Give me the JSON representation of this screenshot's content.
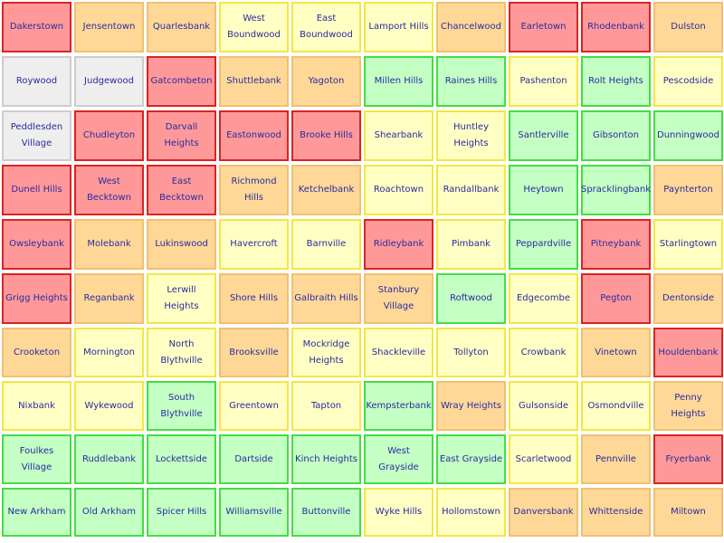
{
  "palette": {
    "red": {
      "bg": "#ff9999",
      "border": "#dd2222"
    },
    "orange": {
      "bg": "#ffd898",
      "border": "#f0c070"
    },
    "yellow": {
      "bg": "#ffffc4",
      "border": "#f2e840"
    },
    "green": {
      "bg": "#c4ffc4",
      "border": "#44dd44"
    },
    "grey": {
      "bg": "#eeeeee",
      "border": "#cccccc"
    }
  },
  "rows": [
    [
      {
        "name": "Dakerstown",
        "status": "red"
      },
      {
        "name": "Jensentown",
        "status": "orange"
      },
      {
        "name": "Quarlesbank",
        "status": "orange"
      },
      {
        "name": "West Boundwood",
        "status": "yellow"
      },
      {
        "name": "East Boundwood",
        "status": "yellow"
      },
      {
        "name": "Lamport Hills",
        "status": "yellow"
      },
      {
        "name": "Chancelwood",
        "status": "orange"
      },
      {
        "name": "Earletown",
        "status": "red"
      },
      {
        "name": "Rhodenbank",
        "status": "red"
      },
      {
        "name": "Dulston",
        "status": "orange"
      }
    ],
    [
      {
        "name": "Roywood",
        "status": "grey"
      },
      {
        "name": "Judgewood",
        "status": "grey"
      },
      {
        "name": "Gatcombeton",
        "status": "red"
      },
      {
        "name": "Shuttlebank",
        "status": "orange"
      },
      {
        "name": "Yagoton",
        "status": "orange"
      },
      {
        "name": "Millen Hills",
        "status": "green"
      },
      {
        "name": "Raines Hills",
        "status": "green"
      },
      {
        "name": "Pashenton",
        "status": "yellow"
      },
      {
        "name": "Rolt Heights",
        "status": "green"
      },
      {
        "name": "Pescodside",
        "status": "yellow"
      }
    ],
    [
      {
        "name": "Peddlesden Village",
        "status": "grey"
      },
      {
        "name": "Chudleyton",
        "status": "red"
      },
      {
        "name": "Darvall Heights",
        "status": "red"
      },
      {
        "name": "Eastonwood",
        "status": "red"
      },
      {
        "name": "Brooke Hills",
        "status": "red"
      },
      {
        "name": "Shearbank",
        "status": "yellow"
      },
      {
        "name": "Huntley Heights",
        "status": "yellow"
      },
      {
        "name": "Santlerville",
        "status": "green"
      },
      {
        "name": "Gibsonton",
        "status": "green"
      },
      {
        "name": "Dunningwood",
        "status": "green"
      }
    ],
    [
      {
        "name": "Dunell Hills",
        "status": "red"
      },
      {
        "name": "West Becktown",
        "status": "red"
      },
      {
        "name": "East Becktown",
        "status": "red"
      },
      {
        "name": "Richmond Hills",
        "status": "orange"
      },
      {
        "name": "Ketchelbank",
        "status": "orange"
      },
      {
        "name": "Roachtown",
        "status": "yellow"
      },
      {
        "name": "Randallbank",
        "status": "yellow"
      },
      {
        "name": "Heytown",
        "status": "green"
      },
      {
        "name": "Spracklingbank",
        "status": "green"
      },
      {
        "name": "Paynterton",
        "status": "orange"
      }
    ],
    [
      {
        "name": "Owsleybank",
        "status": "red"
      },
      {
        "name": "Molebank",
        "status": "orange"
      },
      {
        "name": "Lukinswood",
        "status": "orange"
      },
      {
        "name": "Havercroft",
        "status": "yellow"
      },
      {
        "name": "Barnville",
        "status": "yellow"
      },
      {
        "name": "Ridleybank",
        "status": "red"
      },
      {
        "name": "Pimbank",
        "status": "yellow"
      },
      {
        "name": "Peppardville",
        "status": "green"
      },
      {
        "name": "Pitneybank",
        "status": "red"
      },
      {
        "name": "Starlingtown",
        "status": "yellow"
      }
    ],
    [
      {
        "name": "Grigg Heights",
        "status": "red"
      },
      {
        "name": "Reganbank",
        "status": "orange"
      },
      {
        "name": "Lerwill Heights",
        "status": "yellow"
      },
      {
        "name": "Shore Hills",
        "status": "orange"
      },
      {
        "name": "Galbraith Hills",
        "status": "orange"
      },
      {
        "name": "Stanbury Village",
        "status": "orange"
      },
      {
        "name": "Roftwood",
        "status": "green"
      },
      {
        "name": "Edgecombe",
        "status": "yellow"
      },
      {
        "name": "Pegton",
        "status": "red"
      },
      {
        "name": "Dentonside",
        "status": "orange"
      }
    ],
    [
      {
        "name": "Crooketon",
        "status": "orange"
      },
      {
        "name": "Mornington",
        "status": "yellow"
      },
      {
        "name": "North Blythville",
        "status": "yellow"
      },
      {
        "name": "Brooksville",
        "status": "orange"
      },
      {
        "name": "Mockridge Heights",
        "status": "yellow"
      },
      {
        "name": "Shackleville",
        "status": "yellow"
      },
      {
        "name": "Tollyton",
        "status": "yellow"
      },
      {
        "name": "Crowbank",
        "status": "yellow"
      },
      {
        "name": "Vinetown",
        "status": "orange"
      },
      {
        "name": "Houldenbank",
        "status": "red"
      }
    ],
    [
      {
        "name": "Nixbank",
        "status": "yellow"
      },
      {
        "name": "Wykewood",
        "status": "yellow"
      },
      {
        "name": "South Blythville",
        "status": "green"
      },
      {
        "name": "Greentown",
        "status": "yellow"
      },
      {
        "name": "Tapton",
        "status": "yellow"
      },
      {
        "name": "Kempsterbank",
        "status": "green"
      },
      {
        "name": "Wray Heights",
        "status": "orange"
      },
      {
        "name": "Gulsonside",
        "status": "yellow"
      },
      {
        "name": "Osmondville",
        "status": "yellow"
      },
      {
        "name": "Penny Heights",
        "status": "orange"
      }
    ],
    [
      {
        "name": "Foulkes Village",
        "status": "green"
      },
      {
        "name": "Ruddlebank",
        "status": "green"
      },
      {
        "name": "Lockettside",
        "status": "green"
      },
      {
        "name": "Dartside",
        "status": "green"
      },
      {
        "name": "Kinch Heights",
        "status": "green"
      },
      {
        "name": "West Grayside",
        "status": "green"
      },
      {
        "name": "East Grayside",
        "status": "green"
      },
      {
        "name": "Scarletwood",
        "status": "yellow"
      },
      {
        "name": "Pennville",
        "status": "orange"
      },
      {
        "name": "Fryerbank",
        "status": "red"
      }
    ],
    [
      {
        "name": "New Arkham",
        "status": "green"
      },
      {
        "name": "Old Arkham",
        "status": "green"
      },
      {
        "name": "Spicer Hills",
        "status": "green"
      },
      {
        "name": "Williamsville",
        "status": "green"
      },
      {
        "name": "Buttonville",
        "status": "green"
      },
      {
        "name": "Wyke Hills",
        "status": "yellow"
      },
      {
        "name": "Hollomstown",
        "status": "yellow"
      },
      {
        "name": "Danversbank",
        "status": "orange"
      },
      {
        "name": "Whittenside",
        "status": "orange"
      },
      {
        "name": "Miltown",
        "status": "orange"
      }
    ]
  ]
}
